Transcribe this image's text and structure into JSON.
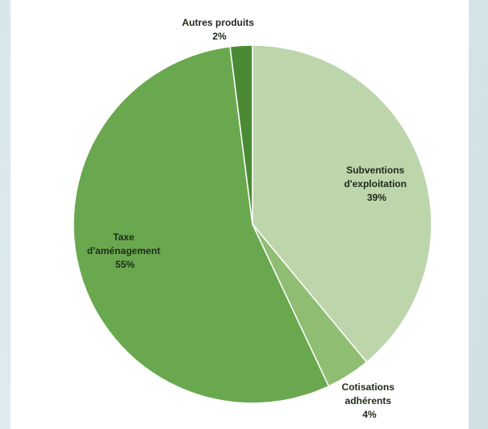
{
  "chart_data": {
    "type": "pie",
    "title": "",
    "slices": [
      {
        "label_lines": [
          "Subventions",
          "d'exploitation"
        ],
        "percent_label": "39%",
        "value": 39,
        "color": "#bdd5ab"
      },
      {
        "label_lines": [
          "Cotisations",
          "adhérents"
        ],
        "percent_label": "4%",
        "value": 4,
        "color": "#8fbd72"
      },
      {
        "label_lines": [
          "Taxe",
          "d'aménagement"
        ],
        "percent_label": "55%",
        "value": 55,
        "color": "#6aa84f"
      },
      {
        "label_lines": [
          "Autres produits"
        ],
        "percent_label": "2%",
        "value": 2,
        "color": "#4a8a34"
      }
    ],
    "start_angle_deg": 0,
    "direction": "clockwise",
    "legend": "none",
    "labels": "outside-and-inside"
  }
}
